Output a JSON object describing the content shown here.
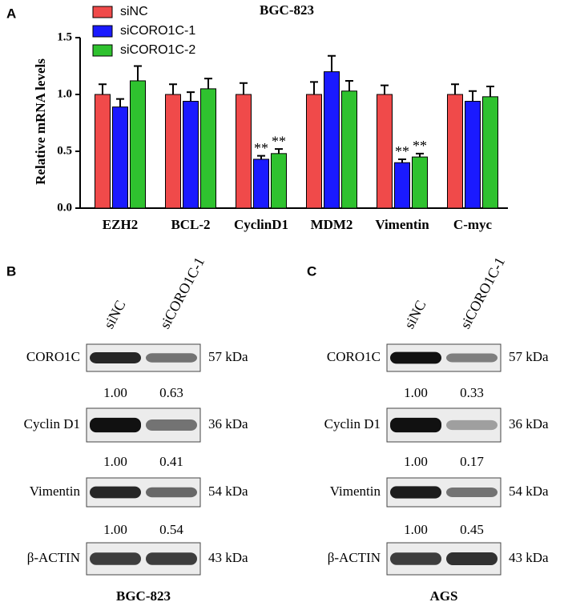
{
  "chart_data": {
    "type": "bar",
    "panel": "A",
    "title": "BGC-823",
    "ylabel": "Relative mRNA levels",
    "categories": [
      "EZH2",
      "BCL-2",
      "CyclinD1",
      "MDM2",
      "Vimentin",
      "C-myc"
    ],
    "series": [
      {
        "name": "siNC",
        "color": "#f04a4a",
        "values": [
          1.0,
          1.0,
          1.0,
          1.0,
          1.0,
          1.0
        ],
        "errors": [
          0.09,
          0.09,
          0.1,
          0.11,
          0.08,
          0.09
        ],
        "significance": [
          null,
          null,
          null,
          null,
          null,
          null
        ]
      },
      {
        "name": "siCORO1C-1",
        "color": "#1a1aff",
        "values": [
          0.89,
          0.94,
          0.43,
          1.2,
          0.4,
          0.94
        ],
        "errors": [
          0.07,
          0.08,
          0.03,
          0.14,
          0.03,
          0.09
        ],
        "significance": [
          null,
          null,
          "**",
          null,
          "**",
          null
        ]
      },
      {
        "name": "siCORO1C-2",
        "color": "#2fc22f",
        "values": [
          1.12,
          1.05,
          0.48,
          1.03,
          0.45,
          0.98
        ],
        "errors": [
          0.13,
          0.09,
          0.04,
          0.09,
          0.03,
          0.09
        ],
        "significance": [
          null,
          null,
          "**",
          null,
          "**",
          null
        ]
      }
    ],
    "ylim": [
      0,
      1.5
    ],
    "yticks": [
      {
        "value": 0,
        "label": "0.0"
      },
      {
        "value": 0.5,
        "label": "0.5"
      },
      {
        "value": 1,
        "label": "1.0"
      },
      {
        "value": 1.5,
        "label": "1.5"
      }
    ]
  },
  "blots": [
    {
      "panel": "B",
      "cell_line": "BGC-823",
      "lanes": [
        "siNC",
        "siCORO1C-1"
      ],
      "rows": [
        {
          "protein": "CORO1C",
          "size": "57 kDa",
          "quant": [
            "1.00",
            "0.63"
          ]
        },
        {
          "protein": "Cyclin D1",
          "size": "36 kDa",
          "quant": [
            "1.00",
            "0.41"
          ]
        },
        {
          "protein": "Vimentin",
          "size": "54 kDa",
          "quant": [
            "1.00",
            "0.54"
          ]
        },
        {
          "protein": "β-ACTIN",
          "size": "43 kDa"
        }
      ]
    },
    {
      "panel": "C",
      "cell_line": "AGS",
      "lanes": [
        "siNC",
        "siCORO1C-1"
      ],
      "rows": [
        {
          "protein": "CORO1C",
          "size": "57 kDa",
          "quant": [
            "1.00",
            "0.33"
          ]
        },
        {
          "protein": "Cyclin D1",
          "size": "36 kDa",
          "quant": [
            "1.00",
            "0.17"
          ]
        },
        {
          "protein": "Vimentin",
          "size": "54 kDa",
          "quant": [
            "1.00",
            "0.45"
          ]
        },
        {
          "protein": "β-ACTIN",
          "size": "43 kDa"
        }
      ]
    }
  ]
}
